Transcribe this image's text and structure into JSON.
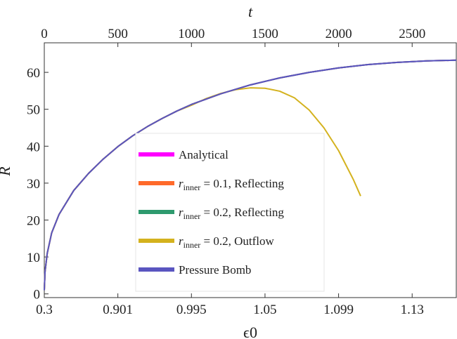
{
  "chart_data": {
    "type": "line",
    "title": "",
    "xlabel": "ϵ0",
    "x2label": "t",
    "ylabel": "R",
    "xlim": [
      0,
      2800
    ],
    "ylim": [
      -1,
      68
    ],
    "x_ticks": [
      {
        "t": 0,
        "label": "0.3"
      },
      {
        "t": 500,
        "label": "0.901"
      },
      {
        "t": 1000,
        "label": "0.995"
      },
      {
        "t": 1500,
        "label": "1.05"
      },
      {
        "t": 2000,
        "label": "1.099"
      },
      {
        "t": 2500,
        "label": "1.13"
      }
    ],
    "x2_ticks": [
      {
        "t": 0,
        "label": "0"
      },
      {
        "t": 500,
        "label": "500"
      },
      {
        "t": 1000,
        "label": "1000"
      },
      {
        "t": 1500,
        "label": "1500"
      },
      {
        "t": 2000,
        "label": "2000"
      },
      {
        "t": 2500,
        "label": "2500"
      }
    ],
    "y_ticks": [
      0,
      10,
      20,
      30,
      40,
      50,
      60
    ],
    "grid": false,
    "legend": {
      "position": "center-left"
    },
    "series": [
      {
        "name": "Analytical",
        "color": "#ff00ff",
        "x": [
          0,
          5,
          20,
          50,
          100,
          200,
          300,
          400,
          500,
          600,
          700,
          800,
          900,
          1000,
          1200,
          1400,
          1600,
          1800,
          2000,
          2200,
          2400,
          2600,
          2800
        ],
        "y": [
          1,
          6,
          11,
          16.5,
          21.5,
          28,
          32.6,
          36.5,
          39.9,
          42.8,
          45.3,
          47.5,
          49.5,
          51.3,
          54.2,
          56.6,
          58.5,
          60,
          61.2,
          62.1,
          62.7,
          63.1,
          63.3
        ]
      },
      {
        "name": "r",
        "name_sub": "inner",
        "name_rest": " = 0.1, Reflecting",
        "color": "#ff6a2a",
        "x": [
          0,
          5,
          20,
          50,
          100,
          200,
          300,
          400,
          500,
          600,
          700,
          800,
          900,
          1000,
          1200,
          1400,
          1600,
          1800,
          2000,
          2200,
          2400,
          2600,
          2800
        ],
        "y": [
          1,
          6,
          11,
          16.5,
          21.5,
          28,
          32.6,
          36.5,
          39.9,
          42.8,
          45.3,
          47.5,
          49.5,
          51.3,
          54.2,
          56.6,
          58.5,
          60,
          61.2,
          62.1,
          62.7,
          63.1,
          63.3
        ]
      },
      {
        "name": "r",
        "name_sub": "inner",
        "name_rest": " = 0.2, Reflecting",
        "color": "#2e9a6e",
        "x": [
          0,
          5,
          20,
          50,
          100,
          200,
          300,
          400,
          500,
          600,
          700,
          800,
          900,
          1000,
          1200,
          1400,
          1600,
          1800,
          2000,
          2200,
          2400,
          2600,
          2800
        ],
        "y": [
          1,
          6,
          11,
          16.5,
          21.5,
          28,
          32.6,
          36.5,
          39.9,
          42.8,
          45.3,
          47.5,
          49.5,
          51.3,
          54.2,
          56.6,
          58.5,
          60,
          61.2,
          62.1,
          62.7,
          63.1,
          63.3
        ]
      },
      {
        "name": "r",
        "name_sub": "inner",
        "name_rest": " = 0.2, Outflow",
        "color": "#d4b21e",
        "x": [
          0,
          5,
          20,
          50,
          100,
          200,
          300,
          400,
          500,
          600,
          700,
          800,
          900,
          1000,
          1100,
          1200,
          1300,
          1400,
          1500,
          1600,
          1700,
          1800,
          1900,
          2000,
          2100,
          2150
        ],
        "y": [
          1,
          6,
          11,
          16.5,
          21.5,
          28,
          32.6,
          36.5,
          39.9,
          42.8,
          45.3,
          47.5,
          49.5,
          51.1,
          52.9,
          54.3,
          55.3,
          55.8,
          55.7,
          54.9,
          53.1,
          49.8,
          45,
          38.8,
          31,
          26.5
        ]
      },
      {
        "name": "Pressure Bomb",
        "color": "#5a55c0",
        "x": [
          0,
          5,
          20,
          50,
          100,
          200,
          300,
          400,
          500,
          600,
          700,
          800,
          900,
          1000,
          1200,
          1400,
          1600,
          1800,
          2000,
          2200,
          2400,
          2600,
          2800
        ],
        "y": [
          1,
          6,
          11,
          16.5,
          21.5,
          28,
          32.6,
          36.5,
          39.9,
          42.8,
          45.3,
          47.5,
          49.5,
          51.3,
          54.2,
          56.6,
          58.5,
          60,
          61.2,
          62.1,
          62.7,
          63.1,
          63.3
        ]
      }
    ]
  }
}
